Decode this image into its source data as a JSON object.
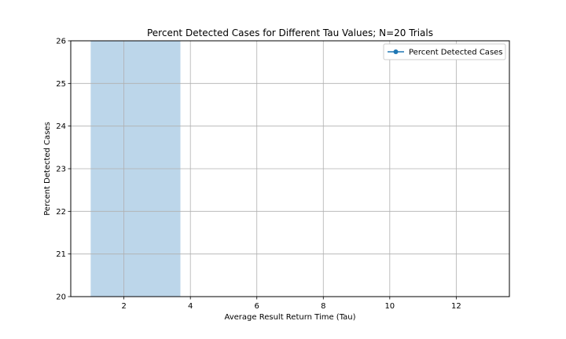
{
  "chart_data": {
    "type": "line",
    "title": "Percent Detected Cases for Different Tau Values; N=20 Trials",
    "xlabel": "Average Result Return Time (Tau)",
    "ylabel": "Percent Detected Cases",
    "xlim": [
      0.4,
      13.6
    ],
    "ylim": [
      20,
      26
    ],
    "xticks": [
      2,
      4,
      6,
      8,
      10,
      12
    ],
    "yticks": [
      20,
      21,
      22,
      23,
      24,
      25,
      26
    ],
    "grid": true,
    "legend_position": "top-right",
    "shaded_band": {
      "x_start": 1.0,
      "x_end": 3.7,
      "color": "#bcd6ea"
    },
    "series": [
      {
        "name": "Percent Detected Cases",
        "color": "#1f77b4",
        "marker": "circle",
        "x": [],
        "y": []
      }
    ]
  }
}
